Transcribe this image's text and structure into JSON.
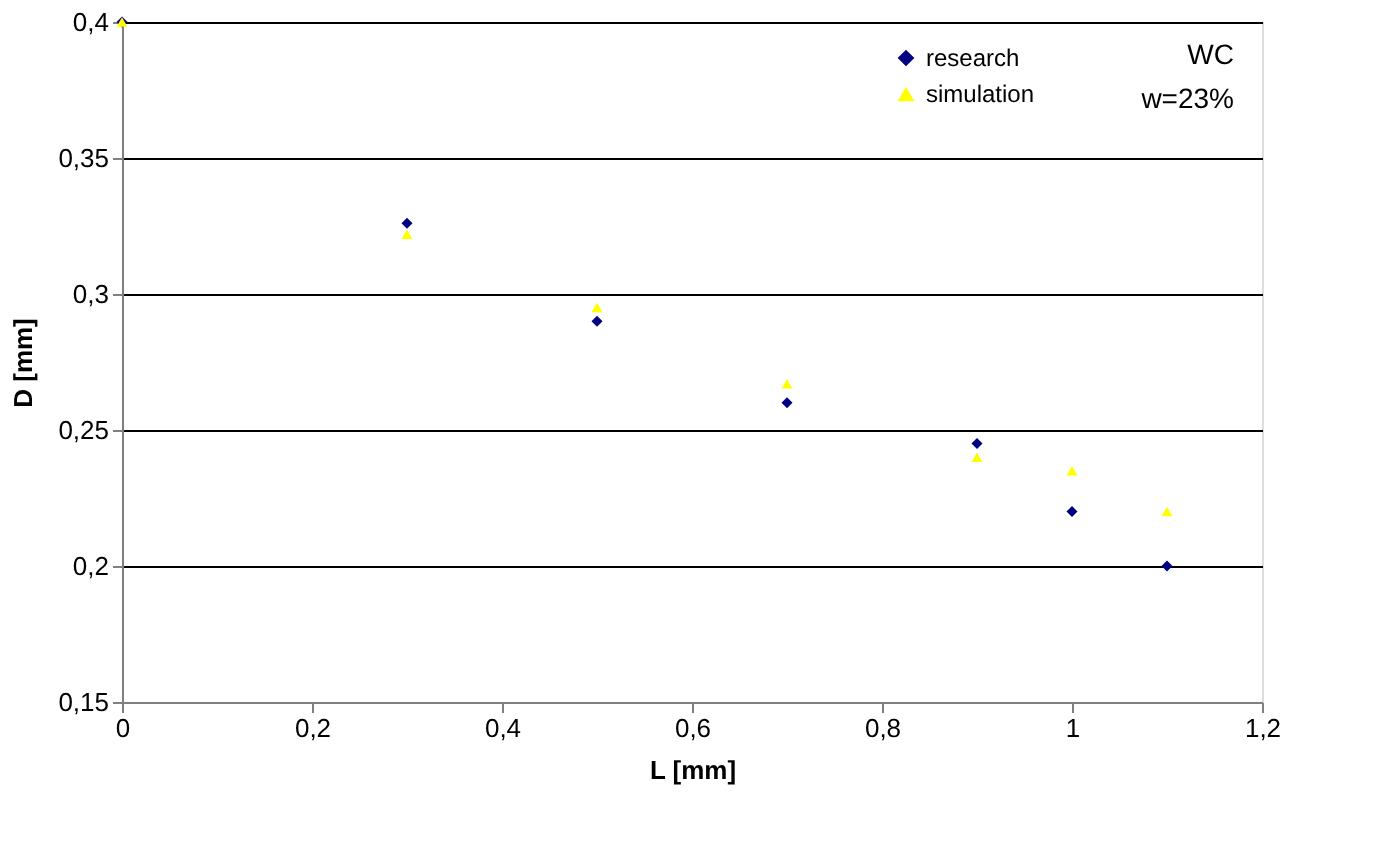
{
  "chart_data": {
    "type": "scatter",
    "xlabel": "L [mm]",
    "ylabel": "D [mm]",
    "x": [
      0,
      0.3,
      0.5,
      0.7,
      0.9,
      1.0,
      1.1
    ],
    "series": [
      {
        "name": "research",
        "color": "#000080",
        "marker": "diamond",
        "values": [
          0.4,
          0.326,
          0.29,
          0.26,
          0.245,
          0.22,
          0.2
        ]
      },
      {
        "name": "simulation",
        "color": "#ffff00",
        "marker": "triangle",
        "values": [
          0.4,
          0.322,
          0.295,
          0.267,
          0.24,
          0.235,
          0.22
        ]
      }
    ],
    "annotations": [
      "WC",
      "w=23%"
    ],
    "xlim": [
      0,
      1.2
    ],
    "ylim": [
      0.15,
      0.4
    ],
    "xticks": [
      0,
      {
        "value": 0.2,
        "label": "0,2"
      },
      {
        "value": 0.4,
        "label": "0,4"
      },
      {
        "value": 0.6,
        "label": "0,6"
      },
      {
        "value": 0.8,
        "label": "0,8"
      },
      1,
      {
        "value": 1.2,
        "label": "1,2"
      }
    ],
    "yticks": [
      {
        "value": 0.15,
        "label": "0,15"
      },
      {
        "value": 0.2,
        "label": "0,2"
      },
      {
        "value": 0.25,
        "label": "0,25"
      },
      {
        "value": 0.3,
        "label": "0,3"
      },
      {
        "value": 0.35,
        "label": "0,35"
      },
      {
        "value": 0.4,
        "label": "0,4"
      }
    ],
    "grid": "y",
    "legend": "top right"
  }
}
